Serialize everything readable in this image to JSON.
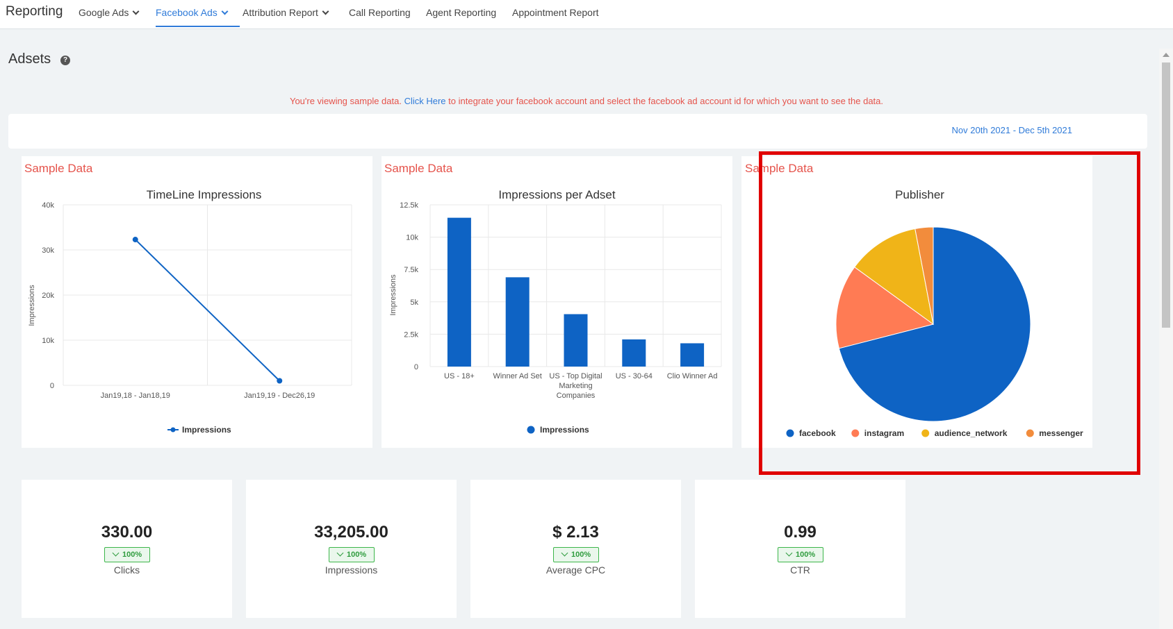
{
  "nav": {
    "brand": "Reporting",
    "items": [
      {
        "label": "Google Ads",
        "dropdown": true
      },
      {
        "label": "Facebook Ads",
        "dropdown": true,
        "active": true
      },
      {
        "label": "Attribution Report",
        "dropdown": true
      },
      {
        "label": "Call Reporting"
      },
      {
        "label": "Agent Reporting"
      },
      {
        "label": "Appointment Report"
      }
    ]
  },
  "page": {
    "title": "Adsets",
    "help_icon": "question-circle-icon"
  },
  "notice": {
    "before": "You're viewing sample data. ",
    "link": "Click Here",
    "after": " to integrate your facebook account and select the facebook ad account id for which you want to see the data."
  },
  "date_range": "Nov 20th 2021 - Dec 5th 2021",
  "cards": {
    "sample_label": "Sample Data",
    "timeline": {
      "title": "TimeLine Impressions"
    },
    "adset": {
      "title": "Impressions per Adset"
    },
    "publisher": {
      "title": "Publisher"
    }
  },
  "chart_data": [
    {
      "type": "line",
      "title": "TimeLine Impressions",
      "ylabel": "Impressions",
      "categories": [
        "Jan19,18 - Jan18,19",
        "Jan19,19 - Dec26,19"
      ],
      "series": [
        {
          "name": "Impressions",
          "values": [
            32300,
            1000
          ],
          "color": "#0e63c4"
        }
      ],
      "ylim": [
        0,
        40000
      ],
      "yticks": [
        "0",
        "10k",
        "20k",
        "30k",
        "40k"
      ],
      "grid": true,
      "legend": "bottom"
    },
    {
      "type": "bar",
      "title": "Impressions per Adset",
      "ylabel": "Impressions",
      "categories": [
        "US - 18+",
        "Winner Ad Set",
        "US - Top Digital Marketing Companies",
        "US - 30-64",
        "Clio Winner Ad"
      ],
      "category_lines": [
        [
          "US - 18+"
        ],
        [
          "Winner Ad Set"
        ],
        [
          "US - Top Digital",
          "Marketing",
          "Companies"
        ],
        [
          "US - 30-64"
        ],
        [
          "Clio Winner Ad"
        ]
      ],
      "series": [
        {
          "name": "Impressions",
          "values": [
            11500,
            6900,
            4050,
            2100,
            1800
          ],
          "color": "#0e63c4"
        }
      ],
      "ylim": [
        0,
        12500
      ],
      "yticks": [
        "0",
        "2.5k",
        "5k",
        "7.5k",
        "10k",
        "12.5k"
      ],
      "grid": true,
      "legend": "bottom"
    },
    {
      "type": "pie",
      "title": "Publisher",
      "slices": [
        {
          "label": "facebook",
          "value": 71,
          "color": "#0e63c4"
        },
        {
          "label": "instagram",
          "value": 14,
          "color": "#ff7b54"
        },
        {
          "label": "audience_network",
          "value": 12,
          "color": "#f0b418"
        },
        {
          "label": "messenger",
          "value": 3,
          "color": "#f28c3c"
        }
      ],
      "legend": "bottom"
    }
  ],
  "stats": [
    {
      "value": "330.00",
      "change": "100%",
      "label": "Clicks",
      "trend_icon": "chevron-down-icon"
    },
    {
      "value": "33,205.00",
      "change": "100%",
      "label": "Impressions",
      "trend_icon": "chevron-down-icon"
    },
    {
      "value": "$ 2.13",
      "change": "100%",
      "label": "Average CPC",
      "trend_icon": "chevron-down-icon"
    },
    {
      "value": "0.99",
      "change": "100%",
      "label": "CTR",
      "trend_icon": "chevron-down-icon"
    }
  ],
  "colors": {
    "accent": "#2f7bd9",
    "sample": "#e5534b",
    "highlight": "#e00000",
    "up": "#3cb64a"
  }
}
